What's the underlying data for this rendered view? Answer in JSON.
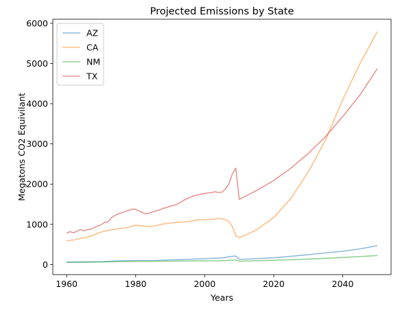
{
  "chart_data": {
    "type": "line",
    "title": "Projected Emissions by State",
    "xlabel": "Years",
    "ylabel": "Megatons CO2 Equivilant",
    "xlim": [
      1956,
      2054
    ],
    "ylim": [
      -250,
      6100
    ],
    "xticks": [
      1960,
      1980,
      2000,
      2020,
      2040
    ],
    "yticks": [
      0,
      1000,
      2000,
      3000,
      4000,
      5000,
      6000
    ],
    "grid": false,
    "legend_position": "top-left",
    "series": [
      {
        "name": "AZ",
        "color": "#1f77b4",
        "points": [
          [
            1960,
            60
          ],
          [
            1965,
            65
          ],
          [
            1970,
            70
          ],
          [
            1975,
            90
          ],
          [
            1980,
            100
          ],
          [
            1985,
            100
          ],
          [
            1990,
            115
          ],
          [
            1995,
            130
          ],
          [
            2000,
            145
          ],
          [
            2005,
            165
          ],
          [
            2008,
            205
          ],
          [
            2009,
            210
          ],
          [
            2010,
            130
          ],
          [
            2015,
            145
          ],
          [
            2020,
            170
          ],
          [
            2025,
            205
          ],
          [
            2030,
            245
          ],
          [
            2035,
            290
          ],
          [
            2040,
            330
          ],
          [
            2045,
            390
          ],
          [
            2050,
            470
          ]
        ]
      },
      {
        "name": "CA",
        "color": "#ff7f0e",
        "points": [
          [
            1960,
            590
          ],
          [
            1962,
            610
          ],
          [
            1964,
            650
          ],
          [
            1966,
            680
          ],
          [
            1968,
            740
          ],
          [
            1970,
            810
          ],
          [
            1972,
            850
          ],
          [
            1974,
            880
          ],
          [
            1976,
            900
          ],
          [
            1978,
            930
          ],
          [
            1980,
            980
          ],
          [
            1982,
            960
          ],
          [
            1984,
            940
          ],
          [
            1986,
            970
          ],
          [
            1988,
            1010
          ],
          [
            1990,
            1030
          ],
          [
            1992,
            1050
          ],
          [
            1994,
            1060
          ],
          [
            1996,
            1080
          ],
          [
            1998,
            1110
          ],
          [
            2000,
            1120
          ],
          [
            2002,
            1120
          ],
          [
            2004,
            1150
          ],
          [
            2006,
            1120
          ],
          [
            2007,
            1070
          ],
          [
            2008,
            950
          ],
          [
            2009,
            720
          ],
          [
            2010,
            670
          ],
          [
            2012,
            740
          ],
          [
            2015,
            860
          ],
          [
            2020,
            1170
          ],
          [
            2025,
            1650
          ],
          [
            2030,
            2300
          ],
          [
            2035,
            3100
          ],
          [
            2040,
            4100
          ],
          [
            2045,
            5000
          ],
          [
            2050,
            5790
          ]
        ]
      },
      {
        "name": "NM",
        "color": "#2ca02c",
        "points": [
          [
            1960,
            55
          ],
          [
            1965,
            60
          ],
          [
            1970,
            65
          ],
          [
            1975,
            75
          ],
          [
            1980,
            80
          ],
          [
            1985,
            80
          ],
          [
            1990,
            85
          ],
          [
            1995,
            90
          ],
          [
            2000,
            92
          ],
          [
            2005,
            95
          ],
          [
            2008,
            110
          ],
          [
            2009,
            115
          ],
          [
            2010,
            85
          ],
          [
            2015,
            95
          ],
          [
            2020,
            105
          ],
          [
            2025,
            120
          ],
          [
            2030,
            135
          ],
          [
            2035,
            155
          ],
          [
            2040,
            175
          ],
          [
            2045,
            200
          ],
          [
            2050,
            225
          ]
        ]
      },
      {
        "name": "TX",
        "color": "#d62728",
        "points": [
          [
            1960,
            780
          ],
          [
            1961,
            820
          ],
          [
            1962,
            790
          ],
          [
            1963,
            830
          ],
          [
            1964,
            870
          ],
          [
            1965,
            840
          ],
          [
            1966,
            870
          ],
          [
            1967,
            880
          ],
          [
            1968,
            920
          ],
          [
            1969,
            960
          ],
          [
            1970,
            990
          ],
          [
            1971,
            1050
          ],
          [
            1972,
            1060
          ],
          [
            1973,
            1170
          ],
          [
            1974,
            1220
          ],
          [
            1975,
            1260
          ],
          [
            1976,
            1290
          ],
          [
            1977,
            1320
          ],
          [
            1978,
            1350
          ],
          [
            1979,
            1380
          ],
          [
            1980,
            1370
          ],
          [
            1981,
            1330
          ],
          [
            1982,
            1290
          ],
          [
            1983,
            1260
          ],
          [
            1984,
            1280
          ],
          [
            1985,
            1310
          ],
          [
            1986,
            1340
          ],
          [
            1987,
            1360
          ],
          [
            1988,
            1400
          ],
          [
            1989,
            1420
          ],
          [
            1990,
            1450
          ],
          [
            1991,
            1470
          ],
          [
            1992,
            1500
          ],
          [
            1993,
            1550
          ],
          [
            1994,
            1600
          ],
          [
            1995,
            1640
          ],
          [
            1996,
            1680
          ],
          [
            1997,
            1710
          ],
          [
            1998,
            1730
          ],
          [
            1999,
            1750
          ],
          [
            2000,
            1770
          ],
          [
            2001,
            1780
          ],
          [
            2002,
            1790
          ],
          [
            2003,
            1810
          ],
          [
            2004,
            1790
          ],
          [
            2005,
            1800
          ],
          [
            2006,
            1880
          ],
          [
            2007,
            2000
          ],
          [
            2008,
            2250
          ],
          [
            2009,
            2400
          ],
          [
            2010,
            1620
          ],
          [
            2015,
            1840
          ],
          [
            2020,
            2090
          ],
          [
            2025,
            2400
          ],
          [
            2030,
            2760
          ],
          [
            2035,
            3180
          ],
          [
            2040,
            3680
          ],
          [
            2045,
            4220
          ],
          [
            2050,
            4870
          ]
        ]
      }
    ]
  }
}
